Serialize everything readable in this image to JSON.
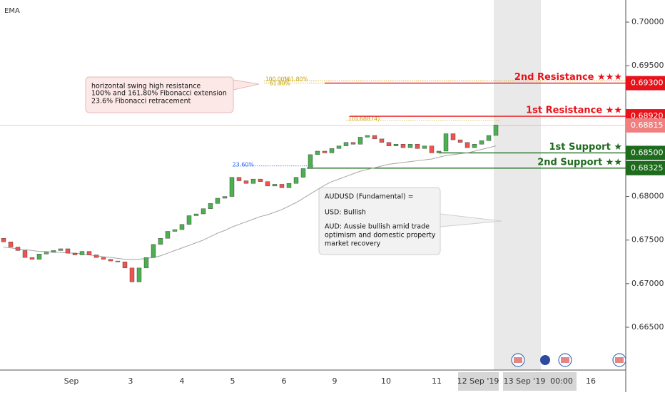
{
  "chart_data": {
    "type": "candlestick",
    "indicator": "EMA",
    "ylim": [
      0.66,
      0.7025
    ],
    "yticks": [
      {
        "value": 0.7,
        "label": "0.70000"
      },
      {
        "value": 0.695,
        "label": "0.69500"
      },
      {
        "value": 0.68,
        "label": "0.68000"
      },
      {
        "value": 0.675,
        "label": "0.67500"
      },
      {
        "value": 0.67,
        "label": "0.67000"
      },
      {
        "value": 0.665,
        "label": "0.66500"
      }
    ],
    "x_labels": [
      "Sep",
      "3",
      "4",
      "5",
      "6",
      "9",
      "10",
      "11",
      "12 Sep '19",
      "13 Sep '19",
      "00:00",
      "16"
    ],
    "up_color": "#4caf50",
    "down_color": "#ef5350",
    "ema_color": "#a5a5a5",
    "open": [
      0.6752,
      0.6748,
      0.6742,
      0.6738,
      0.673,
      0.6728,
      0.6734,
      0.6736,
      0.6738,
      0.674,
      0.6735,
      0.6733,
      0.6737,
      0.6733,
      0.673,
      0.6728,
      0.6726,
      0.6725,
      0.6718,
      0.6702,
      0.6718,
      0.673,
      0.6745,
      0.6752,
      0.676,
      0.6762,
      0.6768,
      0.6778,
      0.678,
      0.6786,
      0.6792,
      0.6798,
      0.68,
      0.6822,
      0.6818,
      0.6815,
      0.682,
      0.6817,
      0.6812,
      0.6814,
      0.681,
      0.6815,
      0.6822,
      0.6832,
      0.6848,
      0.6852,
      0.685,
      0.6855,
      0.6858,
      0.6862,
      0.686,
      0.6868,
      0.687,
      0.6866,
      0.6862,
      0.6858,
      0.686,
      0.6856,
      0.686,
      0.6855,
      0.6858,
      0.685,
      0.6852,
      0.6872,
      0.6865,
      0.6862,
      0.6856,
      0.686,
      0.6864,
      0.687
    ],
    "close": [
      0.6748,
      0.6742,
      0.6738,
      0.673,
      0.6728,
      0.6734,
      0.6736,
      0.6738,
      0.674,
      0.6735,
      0.6733,
      0.6737,
      0.6733,
      0.673,
      0.6728,
      0.6726,
      0.6725,
      0.6718,
      0.6702,
      0.6718,
      0.673,
      0.6745,
      0.6752,
      0.676,
      0.6762,
      0.6768,
      0.6778,
      0.678,
      0.6786,
      0.6792,
      0.6798,
      0.68,
      0.6822,
      0.6818,
      0.6815,
      0.682,
      0.6817,
      0.6812,
      0.6814,
      0.681,
      0.6815,
      0.6822,
      0.6832,
      0.6848,
      0.6852,
      0.685,
      0.6855,
      0.6858,
      0.6862,
      0.686,
      0.6868,
      0.687,
      0.6866,
      0.6862,
      0.6858,
      0.686,
      0.6856,
      0.686,
      0.6855,
      0.6858,
      0.685,
      0.6852,
      0.6872,
      0.6865,
      0.6862,
      0.6856,
      0.686,
      0.6864,
      0.687,
      0.6882
    ],
    "ema": [
      0.6742,
      0.6741,
      0.674,
      0.6739,
      0.6738,
      0.6737,
      0.6737,
      0.6736,
      0.6736,
      0.6735,
      0.6735,
      0.6734,
      0.6733,
      0.6732,
      0.6731,
      0.673,
      0.6729,
      0.6728,
      0.6728,
      0.6728,
      0.6729,
      0.673,
      0.6732,
      0.6735,
      0.6738,
      0.6741,
      0.6744,
      0.6747,
      0.675,
      0.6754,
      0.6758,
      0.6761,
      0.6765,
      0.6768,
      0.6771,
      0.6774,
      0.6777,
      0.6779,
      0.6782,
      0.6785,
      0.6789,
      0.6793,
      0.6798,
      0.6803,
      0.6808,
      0.6813,
      0.6817,
      0.682,
      0.6823,
      0.6826,
      0.6829,
      0.6831,
      0.6833,
      0.6835,
      0.6837,
      0.6838,
      0.6839,
      0.684,
      0.6841,
      0.6842,
      0.6843,
      0.6845,
      0.6847,
      0.6848,
      0.6849,
      0.685,
      0.6852,
      0.6854,
      0.6856,
      0.6858
    ],
    "levels": [
      {
        "name": "2nd Resistance ★★★",
        "value": 0.693,
        "value_label": "0.69300",
        "color": "#e8121a"
      },
      {
        "name": "1st Resistance ★★",
        "value": 0.6892,
        "value_label": "0.68920",
        "color": "#e8121a"
      },
      {
        "name": "1st Support ★",
        "value": 0.685,
        "value_label": "0.68500",
        "color": "#1e6b1e"
      },
      {
        "name": "2nd Support ★★",
        "value": 0.68325,
        "value_label": "0.68325",
        "color": "#1e6b1e"
      }
    ],
    "last_price": {
      "value": 0.68815,
      "label": "0.68815"
    },
    "fib": [
      {
        "label": "100.00%",
        "value": 0.69325
      },
      {
        "label": "161.80%",
        "value": 0.69325
      },
      {
        "label": "61.80%",
        "value": 0.693
      },
      {
        "label": "1(0.68874)",
        "value": 0.68874
      },
      {
        "label": "23.60%",
        "value": 0.6835
      }
    ],
    "annotations": [
      {
        "lines": [
          "horizontal swing high resistance",
          "100% and 161.80% Fibonacci extension",
          "23.6% Fibonacci retracement"
        ]
      },
      {
        "lines": [
          "AUDUSD (Fundamental) =",
          "USD: Bullish",
          "AUD: Aussie bullish amid trade",
          "optimism and domestic property",
          "market recovery"
        ]
      }
    ]
  }
}
